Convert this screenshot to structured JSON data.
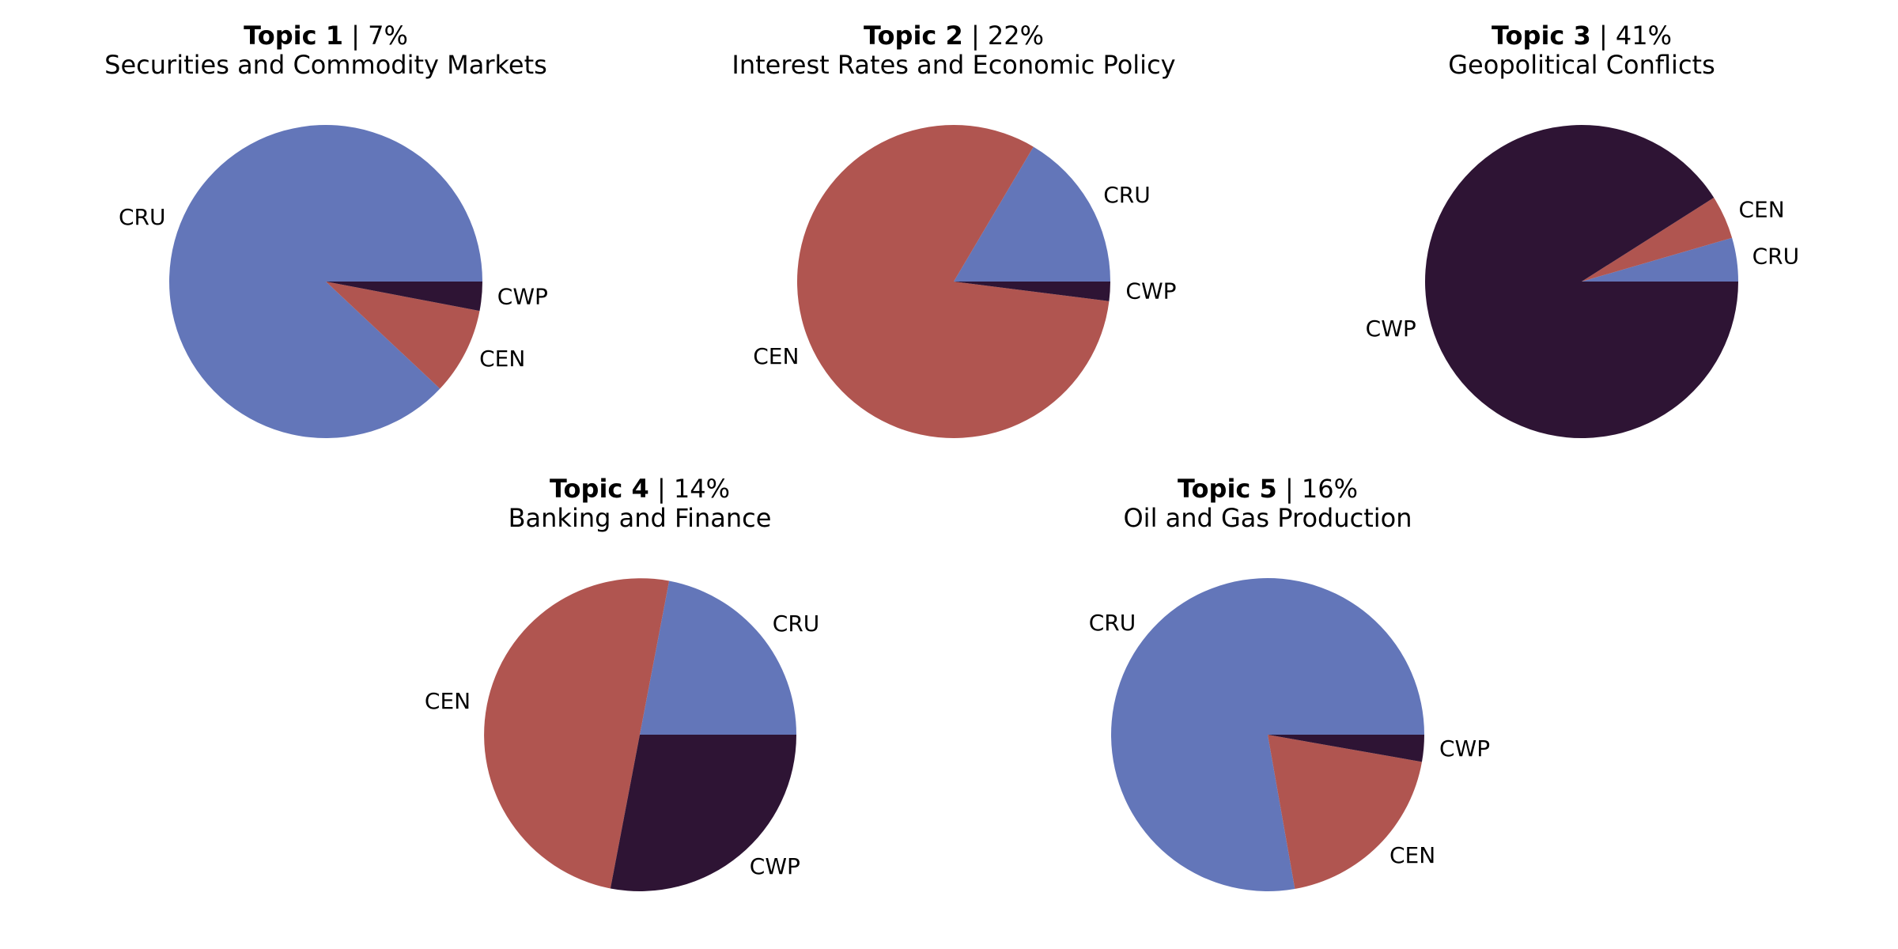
{
  "chart_data": [
    {
      "type": "pie",
      "topic_label": "Topic 1",
      "topic_percent": "7%",
      "title": "Securities and Commodity Markets",
      "categories": [
        "CRU",
        "CEN",
        "CWP"
      ],
      "values": [
        88,
        9,
        3
      ],
      "colors": [
        "#6376b9",
        "#b05550",
        "#2e1434"
      ]
    },
    {
      "type": "pie",
      "topic_label": "Topic 2",
      "topic_percent": "22%",
      "title": "Interest Rates and Economic Policy",
      "categories": [
        "CRU",
        "CEN",
        "CWP"
      ],
      "values": [
        16.5,
        81.5,
        2
      ],
      "colors": [
        "#6376b9",
        "#b05550",
        "#2e1434"
      ]
    },
    {
      "type": "pie",
      "topic_label": "Topic 3",
      "topic_percent": "41%",
      "title": "Geopolitical Conflicts",
      "categories": [
        "CRU",
        "CEN",
        "CWP"
      ],
      "values": [
        4.5,
        4.5,
        91
      ],
      "colors": [
        "#6376b9",
        "#b05550",
        "#2e1434"
      ]
    },
    {
      "type": "pie",
      "topic_label": "Topic 4",
      "topic_percent": "14%",
      "title": "Banking and Finance",
      "categories": [
        "CRU",
        "CEN",
        "CWP"
      ],
      "values": [
        22,
        50,
        28
      ],
      "colors": [
        "#6376b9",
        "#b05550",
        "#2e1434"
      ]
    },
    {
      "type": "pie",
      "topic_label": "Topic 5",
      "topic_percent": "16%",
      "title": "Oil and Gas Production",
      "categories": [
        "CRU",
        "CEN",
        "CWP"
      ],
      "values": [
        70,
        17.5,
        2.5
      ],
      "colors": [
        "#6376b9",
        "#b05550",
        "#2e1434"
      ]
    }
  ]
}
